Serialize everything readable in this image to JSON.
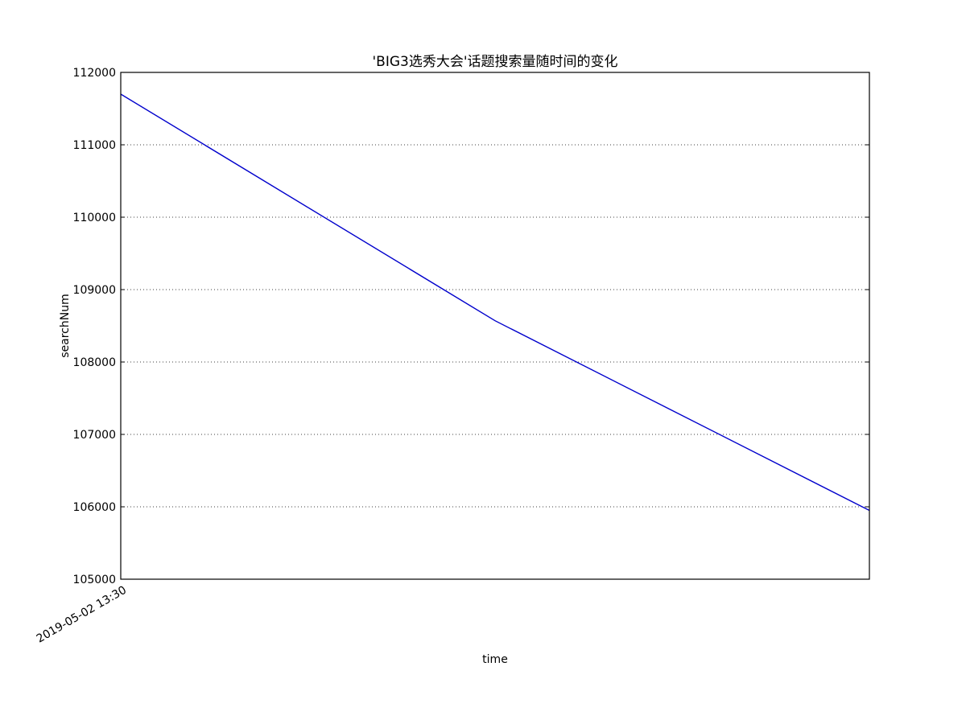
{
  "chart_data": {
    "type": "line",
    "title": "'BIG3选秀大会'话题搜索量随时间的变化",
    "xlabel": "time",
    "ylabel": "searchNum",
    "x_tick_labels": [
      "2019-05-02 13:30"
    ],
    "y_ticks": [
      105000,
      106000,
      107000,
      108000,
      109000,
      110000,
      111000,
      112000
    ],
    "y_tick_labels": [
      "105000",
      "106000",
      "107000",
      "108000",
      "109000",
      "110000",
      "111000",
      "112000"
    ],
    "ylim": [
      105000,
      112000
    ],
    "grid": "horizontal-dotted",
    "line_color": "#0000cc",
    "series": [
      {
        "x": [
          0,
          1,
          2
        ],
        "values": [
          111700,
          108570,
          105950
        ]
      }
    ]
  }
}
